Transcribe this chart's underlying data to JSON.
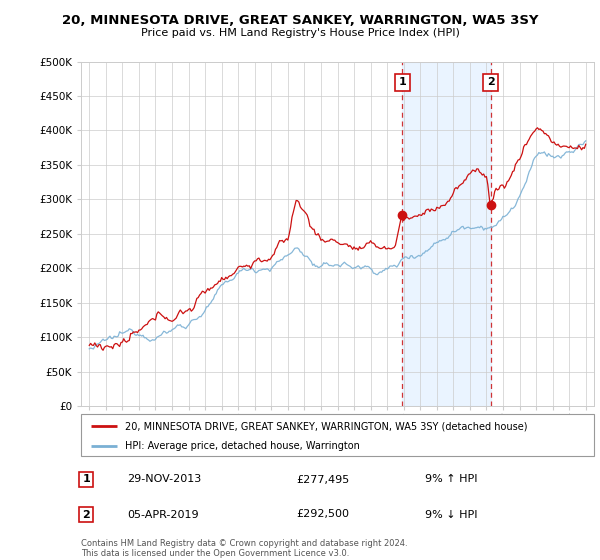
{
  "title": "20, MINNESOTA DRIVE, GREAT SANKEY, WARRINGTON, WA5 3SY",
  "subtitle": "Price paid vs. HM Land Registry's House Price Index (HPI)",
  "ylim": [
    0,
    500000
  ],
  "yticks": [
    0,
    50000,
    100000,
    150000,
    200000,
    250000,
    300000,
    350000,
    400000,
    450000,
    500000
  ],
  "sale1_year": 2013.92,
  "sale1_price": 277495,
  "sale1_label": "1",
  "sale2_year": 2019.25,
  "sale2_price": 292500,
  "sale2_label": "2",
  "hpi_color": "#7ab0d4",
  "price_color": "#cc1111",
  "legend_price_label": "20, MINNESOTA DRIVE, GREAT SANKEY, WARRINGTON, WA5 3SY (detached house)",
  "legend_hpi_label": "HPI: Average price, detached house, Warrington",
  "annotation1_date": "29-NOV-2013",
  "annotation1_price": "£277,495",
  "annotation1_hpi": "9% ↑ HPI",
  "annotation2_date": "05-APR-2019",
  "annotation2_price": "£292,500",
  "annotation2_hpi": "9% ↓ HPI",
  "footer": "Contains HM Land Registry data © Crown copyright and database right 2024.\nThis data is licensed under the Open Government Licence v3.0.",
  "background_color": "#ffffff",
  "shaded_region_color": "#ddeeff",
  "label_box_color": "#cc1111"
}
